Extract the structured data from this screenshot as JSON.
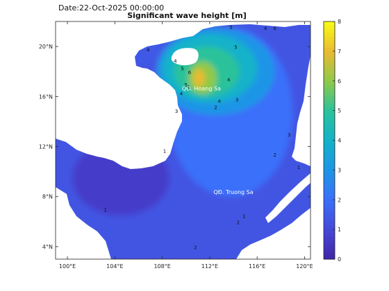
{
  "header": {
    "date_text": "Date:22-Oct-2025 00:00:00",
    "title": "Significant wave height [m]"
  },
  "chart_data": {
    "type": "heatmap",
    "title": "Significant wave height [m]",
    "xlim": [
      99,
      120.5
    ],
    "ylim": [
      3,
      22
    ],
    "x_ticks": [
      {
        "value": 100,
        "label": "100°E"
      },
      {
        "value": 104,
        "label": "104°E"
      },
      {
        "value": 108,
        "label": "108°E"
      },
      {
        "value": 112,
        "label": "112°E"
      },
      {
        "value": 116,
        "label": "116°E"
      },
      {
        "value": 120,
        "label": "120°E"
      }
    ],
    "y_ticks": [
      {
        "value": 4,
        "label": "4°N"
      },
      {
        "value": 8,
        "label": "8°N"
      },
      {
        "value": 12,
        "label": "12°N"
      },
      {
        "value": 16,
        "label": "16°N"
      },
      {
        "value": 20,
        "label": "20°N"
      }
    ],
    "colorbar": {
      "min": 0,
      "max": 8,
      "ticks": [
        "0",
        "1",
        "2",
        "3",
        "4",
        "5",
        "6",
        "7",
        "8"
      ],
      "colors": [
        "#3e26a8",
        "#4648d8",
        "#3a6ffa",
        "#1e95e6",
        "#13b2c9",
        "#2bc29a",
        "#90c94a",
        "#e8bb32",
        "#f9fb15"
      ]
    },
    "grid": true,
    "annotations": [
      {
        "text": "QĐ. Hoang Sa",
        "lon": 111.3,
        "lat": 16.5
      },
      {
        "text": "QĐ. Truong Sa",
        "lon": 114.0,
        "lat": 8.2
      }
    ],
    "wave_field": [
      {
        "level": 1.3,
        "lon": [
          105.0,
          119.5
        ],
        "lat": [
          3.5,
          21.5
        ],
        "note": "basin-wide"
      },
      {
        "level": 2.0,
        "lon": [
          108.5,
          119.0
        ],
        "lat": [
          8.0,
          21.5
        ]
      },
      {
        "level": 3.0,
        "lon": [
          107.5,
          117.5
        ],
        "lat": [
          14.5,
          21.5
        ]
      },
      {
        "level": 4.0,
        "lon": [
          108.0,
          116.0
        ],
        "lat": [
          15.5,
          21.0
        ]
      },
      {
        "level": 5.0,
        "lon": [
          109.0,
          114.5
        ],
        "lat": [
          16.0,
          20.0
        ]
      },
      {
        "level": 6.0,
        "lon": [
          110.2,
          112.6
        ],
        "lat": [
          16.2,
          18.8
        ]
      },
      {
        "level": 7.0,
        "lon": [
          110.6,
          111.6
        ],
        "lat": [
          16.8,
          18.2
        ]
      }
    ],
    "contour_labels": [
      {
        "text": "5",
        "lon": 113.8,
        "lat": 21.4
      },
      {
        "text": "4",
        "lon": 116.7,
        "lat": 21.3
      },
      {
        "text": "6",
        "lon": 117.5,
        "lat": 21.3
      },
      {
        "text": "5",
        "lon": 114.2,
        "lat": 19.8
      },
      {
        "text": "4",
        "lon": 113.6,
        "lat": 17.2
      },
      {
        "text": "4",
        "lon": 106.8,
        "lat": 19.6
      },
      {
        "text": "4",
        "lon": 109.1,
        "lat": 18.7
      },
      {
        "text": "5",
        "lon": 109.7,
        "lat": 18.1
      },
      {
        "text": "6",
        "lon": 110.3,
        "lat": 17.8
      },
      {
        "text": "5",
        "lon": 110.0,
        "lat": 16.8
      },
      {
        "text": "6",
        "lon": 110.2,
        "lat": 16.6
      },
      {
        "text": "4",
        "lon": 109.6,
        "lat": 16.1
      },
      {
        "text": "3",
        "lon": 109.2,
        "lat": 14.7
      },
      {
        "text": "3",
        "lon": 114.3,
        "lat": 15.6
      },
      {
        "text": "4",
        "lon": 112.8,
        "lat": 15.5
      },
      {
        "text": "3",
        "lon": 118.7,
        "lat": 12.8
      },
      {
        "text": "1",
        "lon": 108.2,
        "lat": 11.5
      },
      {
        "text": "2",
        "lon": 117.5,
        "lat": 11.2
      },
      {
        "text": "1",
        "lon": 119.5,
        "lat": 10.2
      },
      {
        "text": "1",
        "lon": 103.2,
        "lat": 6.8
      },
      {
        "text": "2",
        "lon": 114.4,
        "lat": 5.8
      },
      {
        "text": "2",
        "lon": 110.8,
        "lat": 3.8
      },
      {
        "text": "1",
        "lon": 114.9,
        "lat": 6.3
      },
      {
        "text": "2",
        "lon": 112.5,
        "lat": 15.0
      }
    ]
  }
}
